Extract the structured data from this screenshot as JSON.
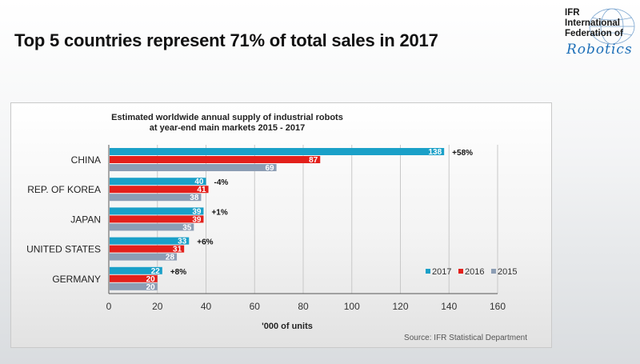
{
  "slide": {
    "title": "Top 5 countries represent 71% of total sales in 2017"
  },
  "logo": {
    "line1": "IFR",
    "line2": "International",
    "line3": "Federation of",
    "script": "Robotics"
  },
  "chart_data": {
    "type": "bar",
    "orientation": "horizontal",
    "title_line1": "Estimated worldwide annual supply of industrial robots",
    "title_line2": "at year-end main markets 2015 - 2017",
    "categories": [
      "CHINA",
      "REP. OF KOREA",
      "JAPAN",
      "UNITED STATES",
      "GERMANY"
    ],
    "series": [
      {
        "name": "2017",
        "color": "#1aa0c8",
        "values": [
          138,
          40,
          39,
          33,
          22
        ]
      },
      {
        "name": "2016",
        "color": "#e3201b",
        "values": [
          87,
          41,
          39,
          31,
          20
        ]
      },
      {
        "name": "2015",
        "color": "#8c9db4",
        "values": [
          69,
          38,
          35,
          28,
          20
        ]
      }
    ],
    "growth_labels": [
      "+58%",
      "-4%",
      "+1%",
      "+6%",
      "+8%"
    ],
    "xlabel": "'000 of units",
    "xlim": [
      0,
      160
    ],
    "xticks": [
      0,
      20,
      40,
      60,
      80,
      100,
      120,
      140,
      160
    ],
    "legend_position": "bottom-right",
    "grid": true,
    "source": "Source: IFR Statistical Department"
  }
}
